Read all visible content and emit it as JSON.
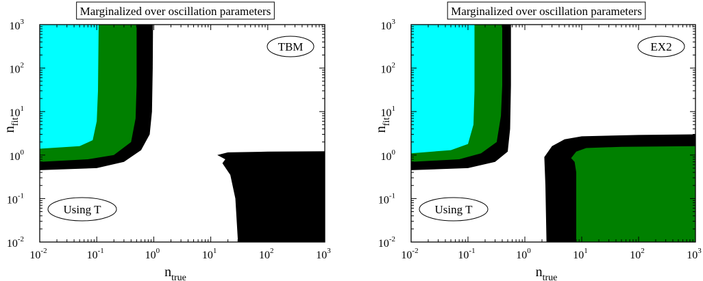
{
  "chart_data": [
    {
      "type": "contour",
      "title": "Marginalized over oscillation parameters",
      "xlabel": "n",
      "xlabel_sub": "true",
      "ylabel": "n",
      "ylabel_sub": "fit",
      "xscale": "log",
      "yscale": "log",
      "xlim": [
        0.01,
        1000
      ],
      "ylim": [
        0.01,
        1000
      ],
      "x_ticks": [
        {
          "base": "10",
          "exp": "-2"
        },
        {
          "base": "10",
          "exp": "-1"
        },
        {
          "base": "10",
          "exp": "0"
        },
        {
          "base": "10",
          "exp": "1"
        },
        {
          "base": "10",
          "exp": "2"
        },
        {
          "base": "10",
          "exp": "3"
        }
      ],
      "y_ticks": [
        {
          "base": "10",
          "exp": "-2"
        },
        {
          "base": "10",
          "exp": "-1"
        },
        {
          "base": "10",
          "exp": "0"
        },
        {
          "base": "10",
          "exp": "1"
        },
        {
          "base": "10",
          "exp": "2"
        },
        {
          "base": "10",
          "exp": "3"
        }
      ],
      "annotations": [
        {
          "text": "TBM",
          "position": "top-right"
        },
        {
          "text": "Using T",
          "position": "bottom-left"
        }
      ],
      "regions": [
        {
          "color": "#000000",
          "polygon": [
            [
              0.01,
              0.45
            ],
            [
              0.1,
              0.5
            ],
            [
              0.3,
              0.7
            ],
            [
              0.6,
              1.3
            ],
            [
              0.85,
              3
            ],
            [
              0.93,
              10
            ],
            [
              0.96,
              100
            ],
            [
              0.97,
              1000
            ],
            [
              0.01,
              1000
            ]
          ]
        },
        {
          "color": "#008000",
          "polygon": [
            [
              0.01,
              0.7
            ],
            [
              0.07,
              0.8
            ],
            [
              0.2,
              1.0
            ],
            [
              0.4,
              2
            ],
            [
              0.48,
              7
            ],
            [
              0.5,
              40
            ],
            [
              0.5,
              1000
            ],
            [
              0.01,
              1000
            ]
          ]
        },
        {
          "color": "#00ffff",
          "polygon": [
            [
              0.01,
              1.4
            ],
            [
              0.05,
              1.6
            ],
            [
              0.085,
              2.2
            ],
            [
              0.1,
              6
            ],
            [
              0.105,
              30
            ],
            [
              0.108,
              1000
            ],
            [
              0.01,
              1000
            ]
          ]
        },
        {
          "color": "#000000",
          "polygon": [
            [
              13,
              1.0
            ],
            [
              20,
              1.15
            ],
            [
              100,
              1.2
            ],
            [
              1000,
              1.22
            ],
            [
              1000,
              0.01
            ],
            [
              30,
              0.01
            ],
            [
              27,
              0.1
            ],
            [
              22,
              0.35
            ],
            [
              16,
              0.65
            ],
            [
              18,
              0.8
            ]
          ]
        }
      ]
    },
    {
      "type": "contour",
      "title": "Marginalized over oscillation parameters",
      "xlabel": "n",
      "xlabel_sub": "true",
      "ylabel": "n",
      "ylabel_sub": "fit",
      "xscale": "log",
      "yscale": "log",
      "xlim": [
        0.01,
        1000
      ],
      "ylim": [
        0.01,
        1000
      ],
      "x_ticks": [
        {
          "base": "10",
          "exp": "-2"
        },
        {
          "base": "10",
          "exp": "-1"
        },
        {
          "base": "10",
          "exp": "0"
        },
        {
          "base": "10",
          "exp": "1"
        },
        {
          "base": "10",
          "exp": "2"
        },
        {
          "base": "10",
          "exp": "3"
        }
      ],
      "y_ticks": [
        {
          "base": "10",
          "exp": "-2"
        },
        {
          "base": "10",
          "exp": "-1"
        },
        {
          "base": "10",
          "exp": "0"
        },
        {
          "base": "10",
          "exp": "1"
        },
        {
          "base": "10",
          "exp": "2"
        },
        {
          "base": "10",
          "exp": "3"
        }
      ],
      "annotations": [
        {
          "text": "EX2",
          "position": "top-right"
        },
        {
          "text": "Using T",
          "position": "bottom-left"
        }
      ],
      "regions": [
        {
          "color": "#000000",
          "polygon": [
            [
              0.01,
              0.45
            ],
            [
              0.1,
              0.5
            ],
            [
              0.3,
              0.7
            ],
            [
              0.5,
              1.2
            ],
            [
              0.55,
              4
            ],
            [
              0.57,
              40
            ],
            [
              0.57,
              1000
            ],
            [
              0.01,
              1000
            ]
          ]
        },
        {
          "color": "#008000",
          "polygon": [
            [
              0.01,
              0.7
            ],
            [
              0.07,
              0.8
            ],
            [
              0.17,
              1.1
            ],
            [
              0.32,
              2
            ],
            [
              0.38,
              8
            ],
            [
              0.4,
              40
            ],
            [
              0.4,
              1000
            ],
            [
              0.01,
              1000
            ]
          ]
        },
        {
          "color": "#00ffff",
          "polygon": [
            [
              0.01,
              1.1
            ],
            [
              0.05,
              1.3
            ],
            [
              0.1,
              1.8
            ],
            [
              0.125,
              5
            ],
            [
              0.13,
              30
            ],
            [
              0.13,
              1000
            ],
            [
              0.01,
              1000
            ]
          ]
        },
        {
          "color": "#000000",
          "polygon": [
            [
              2.2,
              0.9
            ],
            [
              3,
              1.6
            ],
            [
              5,
              2.3
            ],
            [
              10,
              2.7
            ],
            [
              100,
              2.9
            ],
            [
              1000,
              3.0
            ],
            [
              1000,
              0.01
            ],
            [
              2.4,
              0.01
            ],
            [
              2.3,
              0.2
            ]
          ]
        },
        {
          "color": "#008000",
          "polygon": [
            [
              6.5,
              0.85
            ],
            [
              8,
              1.2
            ],
            [
              12,
              1.45
            ],
            [
              50,
              1.55
            ],
            [
              1000,
              1.6
            ],
            [
              1000,
              0.01
            ],
            [
              8,
              0.01
            ],
            [
              8,
              0.4
            ],
            [
              7.5,
              0.7
            ]
          ]
        }
      ]
    }
  ]
}
